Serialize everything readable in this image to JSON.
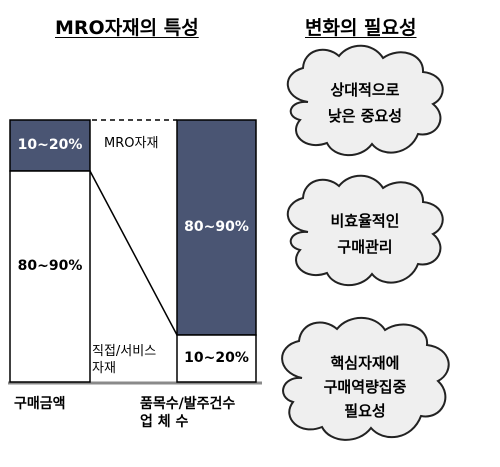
{
  "headings": {
    "left": "MRO자재의 특성",
    "right": "변화의 필요성"
  },
  "left_bar": {
    "top_value": "10~20%",
    "bottom_value": "80~90%",
    "axis_label": "구매금액"
  },
  "right_bar": {
    "top_value": "80~90%",
    "bottom_value": "10~20%",
    "axis_label": [
      "품목수/발주건수",
      "업 체 수"
    ]
  },
  "middle_labels": {
    "mro": "MRO자재",
    "direct": [
      "직접/서비스",
      "자재"
    ]
  },
  "clouds": [
    {
      "lines": [
        "상대적으로",
        "낮은 중요성"
      ]
    },
    {
      "lines": [
        "비효율적인",
        "구매관리"
      ]
    },
    {
      "lines": [
        "핵심자재에",
        "구매역량집중",
        "필요성"
      ]
    }
  ],
  "colors": {
    "dark_fill": "#4a5573",
    "light_fill": "#ffffff",
    "cloud_fill": "#efefef",
    "cloud_stroke": "#222222",
    "axis": "#8a8a8a"
  }
}
